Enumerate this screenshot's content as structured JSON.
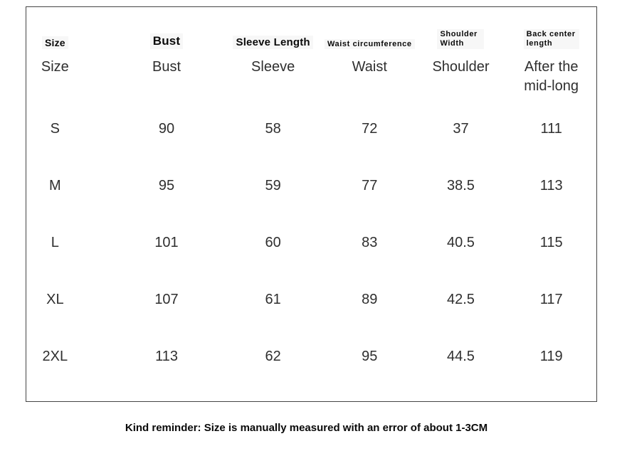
{
  "chart_data": {
    "type": "table",
    "columns": [
      {
        "label": "Size",
        "translation": "Size"
      },
      {
        "label": "Bust",
        "translation": "Bust"
      },
      {
        "label": "Sleeve Length",
        "translation": "Sleeve"
      },
      {
        "label": "Waist circumference",
        "translation": "Waist"
      },
      {
        "label": "Shoulder Width",
        "translation": "Shoulder"
      },
      {
        "label": "Back center length",
        "translation": "After the mid-long"
      }
    ],
    "rows": [
      [
        "S",
        "90",
        "58",
        "72",
        "37",
        "111"
      ],
      [
        "M",
        "95",
        "59",
        "77",
        "38.5",
        "113"
      ],
      [
        "L",
        "101",
        "60",
        "83",
        "40.5",
        "115"
      ],
      [
        "XL",
        "107",
        "61",
        "89",
        "42.5",
        "117"
      ],
      [
        "2XL",
        "113",
        "62",
        "95",
        "44.5",
        "119"
      ]
    ],
    "note": "Kind reminder: Size is manually measured with an error of about 1-3CM"
  },
  "colors": {
    "background": "#ffffff",
    "border": "#454545",
    "heading_text": "#0a0a0a",
    "body_text": "#2f2f2f"
  }
}
